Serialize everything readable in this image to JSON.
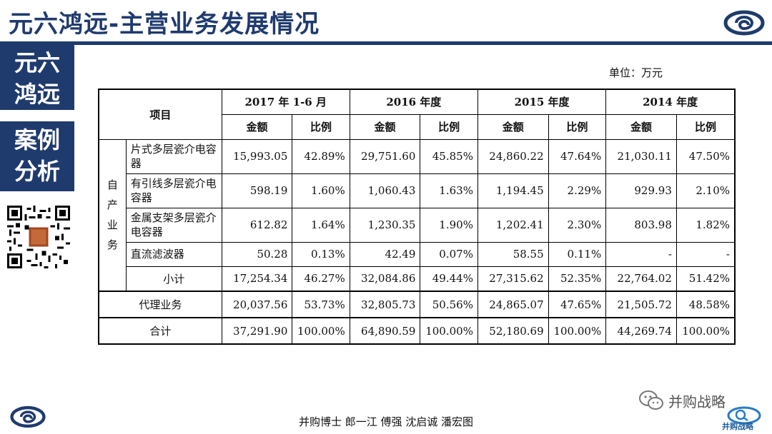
{
  "header": {
    "title": "元六鸿远-主营业务发展情况"
  },
  "sidebar": {
    "box1": [
      "元六",
      "鸿远"
    ],
    "box2": [
      "案例",
      "分析"
    ]
  },
  "unit": "单位：万元",
  "table": {
    "item_header": "项目",
    "periods": [
      "2017 年 1-6 月",
      "2016 年度",
      "2015 年度",
      "2014 年度"
    ],
    "sub_headers": [
      "金额",
      "比例"
    ],
    "self_business_label": "自产业务",
    "rows": [
      {
        "name": "片式多层瓷介电容器",
        "values": [
          "15,993.05",
          "42.89%",
          "29,751.60",
          "45.85%",
          "24,860.22",
          "47.64%",
          "21,030.11",
          "47.50%"
        ]
      },
      {
        "name": "有引线多层瓷介电容器",
        "values": [
          "598.19",
          "1.60%",
          "1,060.43",
          "1.63%",
          "1,194.45",
          "2.29%",
          "929.93",
          "2.10%"
        ]
      },
      {
        "name": "金属支架多层瓷介电容器",
        "values": [
          "612.82",
          "1.64%",
          "1,230.35",
          "1.90%",
          "1,202.41",
          "2.30%",
          "803.98",
          "1.82%"
        ]
      },
      {
        "name": "直流滤波器",
        "values": [
          "50.28",
          "0.13%",
          "42.49",
          "0.07%",
          "58.55",
          "0.11%",
          "-",
          "-"
        ]
      }
    ],
    "subtotal": {
      "name": "小计",
      "values": [
        "17,254.34",
        "46.27%",
        "32,084.86",
        "49.44%",
        "27,315.62",
        "52.35%",
        "22,764.02",
        "51.42%"
      ]
    },
    "agency": {
      "name": "代理业务",
      "values": [
        "20,037.56",
        "53.73%",
        "32,805.73",
        "50.56%",
        "24,865.07",
        "47.65%",
        "21,505.72",
        "48.58%"
      ]
    },
    "total": {
      "name": "合计",
      "values": [
        "37,291.90",
        "100.00%",
        "64,890.59",
        "100.00%",
        "52,180.69",
        "100.00%",
        "44,269.74",
        "100.00%"
      ]
    }
  },
  "wechat": {
    "text": "并购战略",
    "icon": "wechat-icon"
  },
  "brand_logo_text": "并购战略",
  "footer": "并购博士 郎一江 傅强 沈启诚 潘宏图",
  "colors": {
    "brand": "#1f3b6e"
  }
}
